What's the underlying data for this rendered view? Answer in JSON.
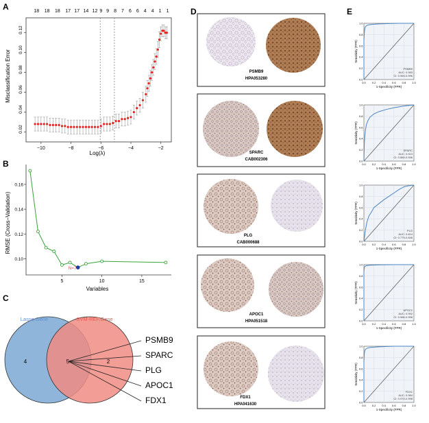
{
  "panels": {
    "a": "A",
    "b": "B",
    "c": "C",
    "d": "D",
    "e": "E"
  },
  "chart_data": [
    {
      "type": "scatter",
      "panel": "A",
      "xlabel": "Log(λ)",
      "ylabel": "Misclassification Error",
      "xlim": [
        -11,
        -1.3
      ],
      "ylim": [
        0.01,
        0.135
      ],
      "xticks": [
        -10,
        -8,
        -6,
        -4,
        -2
      ],
      "xtick_labels": [
        "−10",
        "−8",
        "−6",
        "−4",
        "−2"
      ],
      "yticks": [
        0.02,
        0.04,
        0.06,
        0.08,
        0.1,
        0.12
      ],
      "ytick_labels": [
        "0.02",
        "0.04",
        "0.06",
        "0.08",
        "0.10",
        "0.12"
      ],
      "top_labels": [
        "18",
        "18",
        "18",
        "17",
        "17",
        "14",
        "12",
        "9",
        "9",
        "8",
        "7",
        "6",
        "6",
        "4",
        "4",
        "1",
        "1"
      ],
      "top_label_x": [
        -10.3,
        -9.6,
        -8.9,
        -8.2,
        -7.6,
        -7.0,
        -6.4,
        -6.0,
        -5.55,
        -5.05,
        -4.55,
        -4.05,
        -3.55,
        -3.05,
        -2.55,
        -2.05,
        -1.55
      ],
      "vlines": [
        -6.05,
        -5.1
      ],
      "points": {
        "x": [
          -10.4,
          -10.2,
          -10.0,
          -9.8,
          -9.6,
          -9.4,
          -9.2,
          -9.0,
          -8.8,
          -8.6,
          -8.4,
          -8.2,
          -8.0,
          -7.8,
          -7.6,
          -7.4,
          -7.2,
          -7.0,
          -6.8,
          -6.6,
          -6.4,
          -6.2,
          -6.0,
          -5.8,
          -5.6,
          -5.4,
          -5.2,
          -5.0,
          -4.8,
          -4.6,
          -4.4,
          -4.2,
          -4.0,
          -3.8,
          -3.6,
          -3.4,
          -3.2,
          -3.0,
          -2.9,
          -2.8,
          -2.7,
          -2.6,
          -2.5,
          -2.4,
          -2.3,
          -2.2,
          -2.1,
          -2.0,
          -1.9,
          -1.8,
          -1.7,
          -1.6
        ],
        "y": [
          0.028,
          0.028,
          0.028,
          0.028,
          0.028,
          0.027,
          0.027,
          0.027,
          0.027,
          0.026,
          0.026,
          0.025,
          0.025,
          0.025,
          0.025,
          0.025,
          0.025,
          0.025,
          0.025,
          0.025,
          0.025,
          0.025,
          0.026,
          0.028,
          0.028,
          0.028,
          0.029,
          0.031,
          0.031,
          0.033,
          0.033,
          0.034,
          0.035,
          0.04,
          0.044,
          0.047,
          0.052,
          0.058,
          0.064,
          0.069,
          0.074,
          0.08,
          0.085,
          0.091,
          0.096,
          0.103,
          0.113,
          0.119,
          0.122,
          0.122,
          0.12,
          0.12
        ],
        "err": [
          0.007,
          0.007,
          0.007,
          0.007,
          0.007,
          0.007,
          0.007,
          0.007,
          0.007,
          0.007,
          0.007,
          0.007,
          0.007,
          0.007,
          0.007,
          0.007,
          0.007,
          0.007,
          0.007,
          0.007,
          0.007,
          0.007,
          0.007,
          0.007,
          0.007,
          0.007,
          0.007,
          0.007,
          0.007,
          0.007,
          0.007,
          0.007,
          0.007,
          0.007,
          0.007,
          0.007,
          0.008,
          0.008,
          0.008,
          0.008,
          0.008,
          0.008,
          0.008,
          0.008,
          0.008,
          0.008,
          0.008,
          0.007,
          0.006,
          0.006,
          0.006,
          0.006
        ]
      }
    },
    {
      "type": "line",
      "panel": "B",
      "xlabel": "Variables",
      "ylabel": "RMSE (Cross−Validation)",
      "xlim": [
        0.5,
        18.7
      ],
      "ylim": [
        0.087,
        0.176
      ],
      "xticks": [
        5,
        10,
        15
      ],
      "xtick_labels": [
        "5",
        "10",
        "15"
      ],
      "yticks": [
        0.1,
        0.12,
        0.14,
        0.16
      ],
      "ytick_labels": [
        "0.10",
        "0.12",
        "0.14",
        "0.16"
      ],
      "x": [
        1,
        2,
        3,
        4,
        5,
        6,
        7,
        8,
        10,
        18
      ],
      "y": [
        0.171,
        0.122,
        0.109,
        0.106,
        0.095,
        0.097,
        0.093,
        0.096,
        0.098,
        0.097
      ],
      "best_index": 6,
      "annotation": "N=7"
    },
    {
      "type": "line",
      "panel": "E",
      "subtype": "roc",
      "xlabel": "1-Specificity (FPR)",
      "ylabel": "Sensitivity (TPR)",
      "ticks": [
        "0.0",
        "0.2",
        "0.4",
        "0.6",
        "0.8",
        "1.0"
      ],
      "tick_values": [
        0,
        0.2,
        0.4,
        0.6,
        0.8,
        1.0
      ],
      "curves": [
        {
          "name": "PSMB9",
          "auc_label": "AUC: 0.983",
          "ci_label": "CI: 0.969-0.996",
          "fpr": [
            0,
            0.0,
            0.01,
            0.02,
            0.04,
            0.08,
            0.15,
            0.3,
            0.5,
            0.7,
            1.0
          ],
          "tpr": [
            0,
            0.7,
            0.85,
            0.92,
            0.95,
            0.97,
            0.98,
            0.99,
            0.995,
            1,
            1
          ]
        },
        {
          "name": "SPARC",
          "auc_label": "AUC: 0.913",
          "ci_label": "CI: 0.889-0.936",
          "fpr": [
            0,
            0.01,
            0.03,
            0.05,
            0.08,
            0.12,
            0.2,
            0.3,
            0.45,
            0.6,
            0.8,
            1.0
          ],
          "tpr": [
            0,
            0.35,
            0.55,
            0.65,
            0.72,
            0.78,
            0.84,
            0.88,
            0.92,
            0.95,
            0.98,
            1
          ]
        },
        {
          "name": "PLG",
          "auc_label": "AUC: 0.814",
          "ci_label": "CI: 0.779-0.848",
          "fpr": [
            0,
            0.03,
            0.06,
            0.1,
            0.15,
            0.2,
            0.3,
            0.4,
            0.5,
            0.6,
            0.7,
            0.8,
            0.9,
            1.0
          ],
          "tpr": [
            0,
            0.2,
            0.34,
            0.45,
            0.52,
            0.6,
            0.67,
            0.74,
            0.8,
            0.86,
            0.92,
            0.97,
            0.99,
            1
          ]
        },
        {
          "name": "APOC1",
          "auc_label": "AUC: 0.992",
          "ci_label": "CI: 0.986-0.998",
          "fpr": [
            0,
            0.0,
            0.01,
            0.02,
            0.05,
            0.1,
            0.3,
            0.6,
            1.0
          ],
          "tpr": [
            0,
            0.88,
            0.95,
            0.97,
            0.98,
            0.99,
            0.995,
            1,
            1
          ]
        },
        {
          "name": "FDX1",
          "auc_label": "AUC: 0.984",
          "ci_label": "CI: 0.970-0.998",
          "fpr": [
            0,
            0.0,
            0.01,
            0.02,
            0.04,
            0.08,
            0.15,
            0.3,
            0.6,
            1.0
          ],
          "tpr": [
            0,
            0.72,
            0.88,
            0.93,
            0.95,
            0.97,
            0.98,
            0.99,
            1,
            1
          ]
        }
      ]
    }
  ],
  "venn": {
    "lasso_label": "Lasso.Gene",
    "svm_label": "SVM-REF.Gene",
    "lasso_only": "4",
    "shared": "5",
    "svm_only": "2",
    "genes": [
      "PSMB9",
      "SPARC",
      "PLG",
      "APOC1",
      "FDX1"
    ],
    "lasso_color": "#8fb5db",
    "svm_color": "#f08c82"
  },
  "ihc": [
    {
      "gene": "PSMB9",
      "antibody": "HPA053280"
    },
    {
      "gene": "SPARC",
      "antibody": "CAB002306"
    },
    {
      "gene": "PLG",
      "antibody": "CAB000688"
    },
    {
      "gene": "APOC1",
      "antibody": "HPA051518"
    },
    {
      "gene": "FDX1",
      "antibody": "HPA041630"
    }
  ]
}
